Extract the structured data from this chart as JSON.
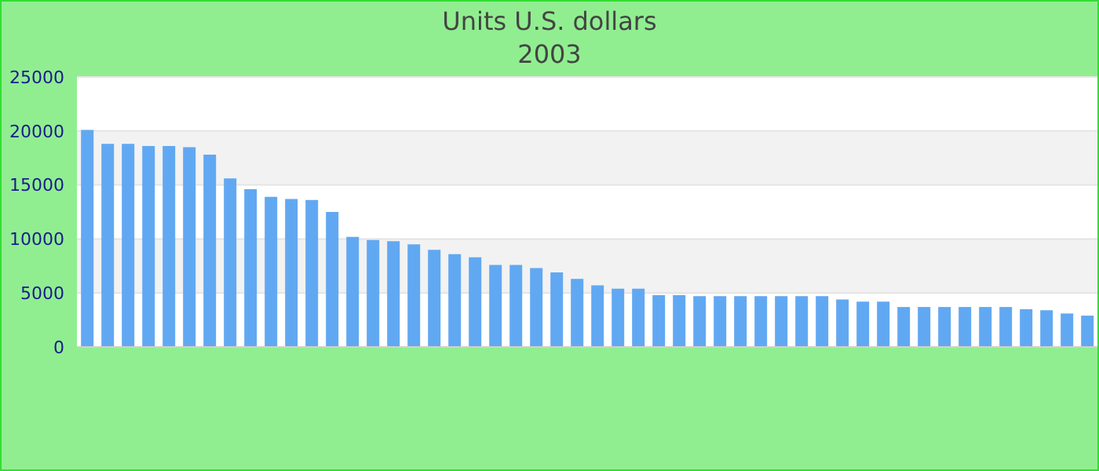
{
  "chart_data": {
    "type": "bar",
    "title": "Units U.S. dollars",
    "subtitle": "2003",
    "categories": [
      null,
      null,
      null,
      null,
      null,
      null,
      null,
      null,
      null,
      null,
      null,
      null,
      null,
      null,
      null,
      null,
      null,
      null,
      null,
      null,
      null,
      null,
      null,
      null,
      null,
      null,
      null,
      null,
      null,
      null,
      null,
      null,
      null,
      null,
      null,
      null,
      null,
      null,
      null,
      null,
      null,
      null,
      null,
      null,
      null,
      null,
      null,
      null,
      null,
      null
    ],
    "values": [
      20100,
      18800,
      18800,
      18600,
      18600,
      18500,
      17800,
      15600,
      14600,
      13900,
      13700,
      13600,
      12500,
      10200,
      9900,
      9800,
      9500,
      9000,
      8600,
      8300,
      7600,
      7600,
      7300,
      6900,
      6300,
      5700,
      5400,
      5400,
      4800,
      4800,
      4700,
      4700,
      4700,
      4700,
      4700,
      4700,
      4700,
      4400,
      4200,
      4200,
      3700,
      3700,
      3700,
      3700,
      3700,
      3700,
      3500,
      3400,
      3100,
      2900
    ],
    "color": "#61a8f2",
    "ylim": [
      0,
      25000
    ],
    "yticks": [
      0,
      5000,
      10000,
      15000,
      20000,
      25000
    ],
    "grid": "y"
  }
}
